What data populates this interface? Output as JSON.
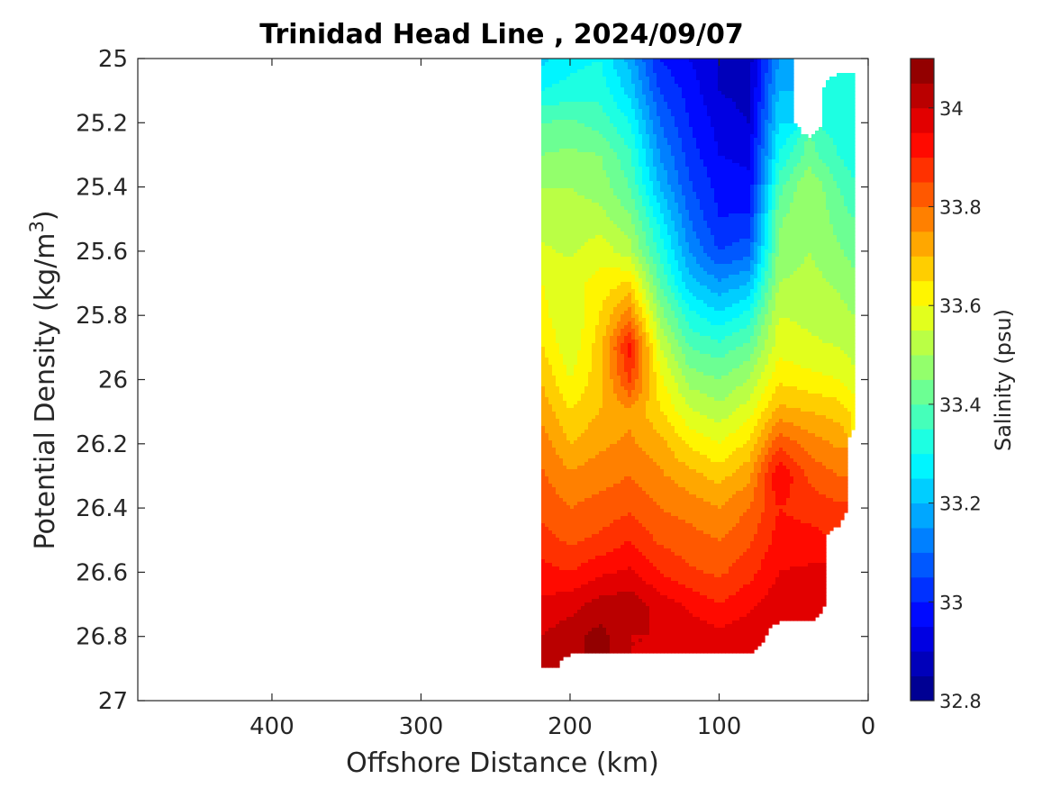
{
  "chart_data": {
    "type": "contourf",
    "title": "Trinidad Head Line , 2024/09/07",
    "xlabel": "Offshore Distance (km)",
    "ylabel_prefix": "Potential Density (kg/m",
    "ylabel_sup": "3",
    "ylabel_suffix": ")",
    "colorbar_label": "Salinity (psu)",
    "xlim": [
      490,
      0
    ],
    "x_reversed": true,
    "ylim": [
      25,
      27
    ],
    "y_reversed": true,
    "x_ticks": [
      "400",
      "300",
      "200",
      "100",
      "0"
    ],
    "x_tick_values": [
      400,
      300,
      200,
      100,
      0
    ],
    "y_ticks": [
      "25",
      "25.2",
      "25.4",
      "25.6",
      "25.8",
      "26",
      "26.2",
      "26.4",
      "26.6",
      "26.8",
      "27"
    ],
    "y_tick_values": [
      25,
      25.2,
      25.4,
      25.6,
      25.8,
      26,
      26.2,
      26.4,
      26.6,
      26.8,
      27
    ],
    "colorbar_ticks": [
      "32.8",
      "33",
      "33.2",
      "33.4",
      "33.6",
      "33.8",
      "34"
    ],
    "colorbar_tick_values": [
      32.8,
      33.0,
      33.2,
      33.4,
      33.6,
      33.8,
      34.0
    ],
    "color_range": [
      32.8,
      34.1
    ],
    "color_levels": 26,
    "colormap": "jet",
    "grid": false,
    "field": {
      "distances_km": [
        220,
        200,
        180,
        160,
        140,
        120,
        100,
        80,
        60,
        40,
        20,
        10
      ],
      "densities": [
        25.0,
        25.1,
        25.2,
        25.3,
        25.4,
        25.5,
        25.6,
        25.7,
        25.8,
        25.9,
        26.0,
        26.1,
        26.2,
        26.3,
        26.4,
        26.5,
        26.6,
        26.7,
        26.8,
        26.9
      ],
      "salinity": [
        [
          33.23,
          33.28,
          33.3,
          33.18,
          33.0,
          32.95,
          32.9,
          32.87,
          33.15,
          null,
          null,
          null
        ],
        [
          33.3,
          33.32,
          33.33,
          33.23,
          33.05,
          32.98,
          32.9,
          32.88,
          33.2,
          null,
          33.32,
          33.3
        ],
        [
          33.4,
          33.41,
          33.38,
          33.3,
          33.1,
          33.0,
          32.93,
          32.9,
          33.25,
          null,
          33.33,
          33.31
        ],
        [
          33.45,
          33.46,
          33.45,
          33.36,
          33.15,
          33.03,
          32.95,
          32.94,
          33.3,
          33.42,
          33.35,
          33.32
        ],
        [
          33.5,
          33.5,
          33.48,
          33.4,
          33.2,
          33.06,
          32.98,
          32.96,
          33.38,
          33.5,
          33.4,
          33.36
        ],
        [
          33.53,
          33.52,
          33.52,
          33.46,
          33.28,
          33.1,
          33.0,
          33.01,
          33.44,
          33.5,
          33.43,
          33.4
        ],
        [
          33.56,
          33.54,
          33.58,
          33.52,
          33.34,
          33.15,
          33.05,
          33.08,
          33.46,
          33.5,
          33.46,
          33.43
        ],
        [
          33.6,
          33.58,
          33.62,
          33.66,
          33.4,
          33.22,
          33.16,
          33.2,
          33.5,
          33.52,
          33.49,
          33.47
        ],
        [
          33.62,
          33.55,
          33.65,
          33.78,
          33.48,
          33.32,
          33.26,
          33.32,
          33.55,
          33.54,
          33.52,
          33.5
        ],
        [
          33.66,
          33.56,
          33.68,
          33.92,
          33.56,
          33.4,
          33.37,
          33.42,
          33.58,
          33.56,
          33.55,
          33.53
        ],
        [
          33.7,
          33.6,
          33.68,
          33.86,
          33.62,
          33.48,
          33.45,
          33.5,
          33.64,
          33.62,
          33.6,
          33.57
        ],
        [
          33.74,
          33.65,
          33.7,
          33.74,
          33.66,
          33.56,
          33.52,
          33.58,
          33.72,
          33.7,
          33.68,
          33.64
        ],
        [
          33.78,
          33.7,
          33.74,
          33.76,
          33.72,
          33.64,
          33.6,
          33.66,
          33.84,
          33.78,
          33.74,
          null
        ],
        [
          33.81,
          33.76,
          33.78,
          33.8,
          33.76,
          33.72,
          33.68,
          33.74,
          33.95,
          33.84,
          33.8,
          null
        ],
        [
          33.84,
          33.8,
          33.82,
          33.84,
          33.8,
          33.78,
          33.75,
          33.8,
          33.9,
          33.88,
          33.86,
          null
        ],
        [
          33.87,
          33.84,
          33.86,
          33.9,
          33.84,
          33.82,
          33.8,
          33.84,
          33.92,
          33.92,
          null,
          null
        ],
        [
          33.92,
          33.9,
          33.94,
          33.96,
          33.9,
          33.86,
          33.84,
          33.88,
          33.95,
          33.96,
          null,
          null
        ],
        [
          33.96,
          33.98,
          34.02,
          34.03,
          33.98,
          33.94,
          33.9,
          33.94,
          33.98,
          33.98,
          null,
          null
        ],
        [
          34.0,
          34.03,
          34.07,
          34.0,
          34.0,
          33.98,
          33.97,
          33.98,
          null,
          null,
          null,
          null
        ],
        [
          34.02,
          null,
          null,
          null,
          null,
          null,
          null,
          null,
          null,
          null,
          null,
          null
        ]
      ]
    }
  }
}
